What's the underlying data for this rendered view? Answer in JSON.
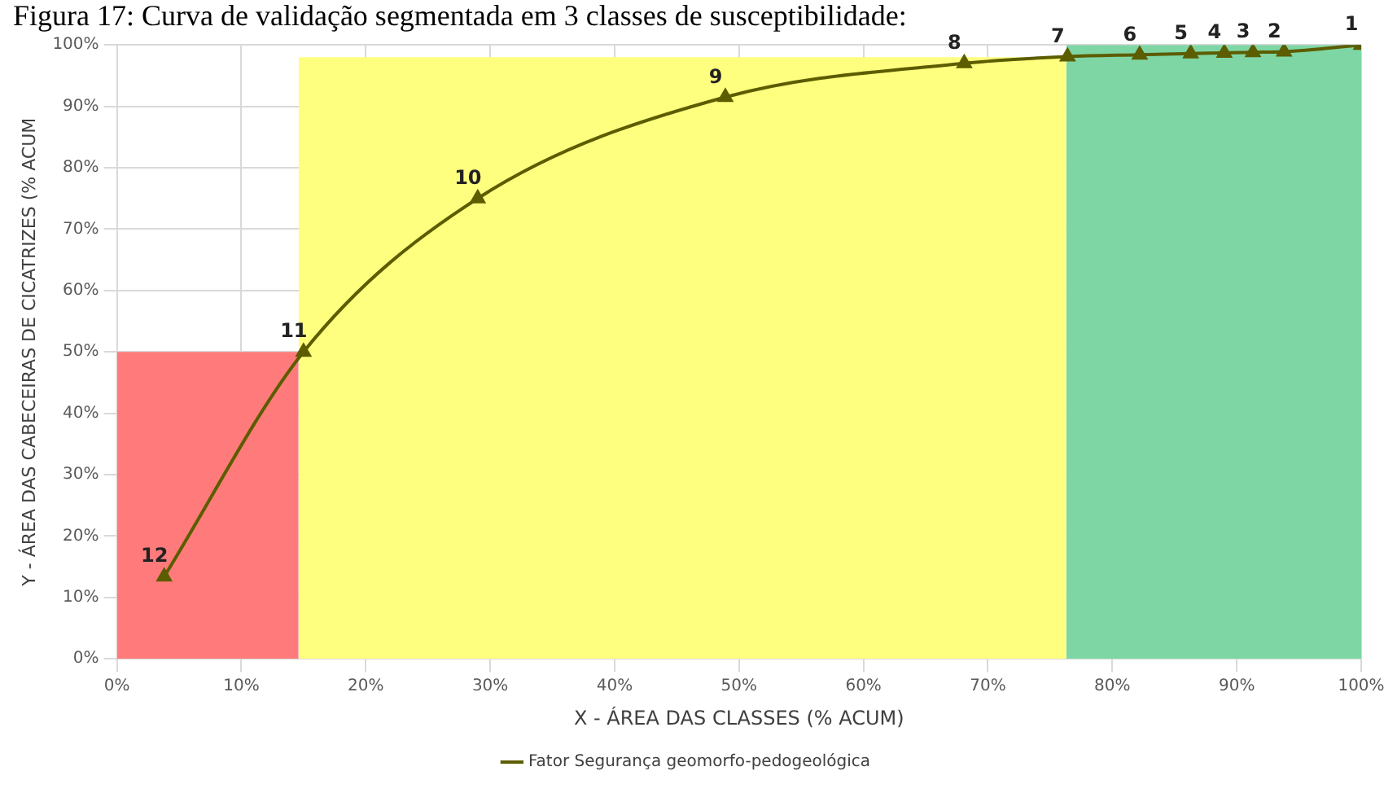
{
  "chart_data": {
    "type": "line",
    "title": "Figura 17: Curva de validação segmentada em 3 classes de susceptibilidade:",
    "xlabel": "X - ÁREA DAS CLASSES (% ACUM)",
    "ylabel": "Y - ÁREA DAS CABECEIRAS DE CICATRIZES (% ACUM",
    "xlim": [
      0,
      100
    ],
    "ylim": [
      0,
      100
    ],
    "xticks": [
      {
        "value": 0,
        "label": "0%"
      },
      {
        "value": 10,
        "label": "10%"
      },
      {
        "value": 20,
        "label": "20%"
      },
      {
        "value": 30,
        "label": "30%"
      },
      {
        "value": 40,
        "label": "40%"
      },
      {
        "value": 50,
        "label": "50%"
      },
      {
        "value": 60,
        "label": "60%"
      },
      {
        "value": 70,
        "label": "70%"
      },
      {
        "value": 80,
        "label": "80%"
      },
      {
        "value": 90,
        "label": "90%"
      },
      {
        "value": 100,
        "label": "100%"
      }
    ],
    "yticks": [
      {
        "value": 0,
        "label": "0%"
      },
      {
        "value": 10,
        "label": "10%"
      },
      {
        "value": 20,
        "label": "20%"
      },
      {
        "value": 30,
        "label": "30%"
      },
      {
        "value": 40,
        "label": "40%"
      },
      {
        "value": 50,
        "label": "50%"
      },
      {
        "value": 60,
        "label": "60%"
      },
      {
        "value": 70,
        "label": "70%"
      },
      {
        "value": 80,
        "label": "80%"
      },
      {
        "value": 90,
        "label": "90%"
      },
      {
        "value": 100,
        "label": "100%"
      }
    ],
    "grid": true,
    "legend": "bottom",
    "line_style": "solid",
    "series": [
      {
        "type": "area",
        "color": "#ff7b7b",
        "x": [
          0,
          14.6
        ],
        "values": [
          50,
          50
        ]
      },
      {
        "type": "area",
        "color": "#ffff7f",
        "x": [
          14.6,
          76.3
        ],
        "values": [
          98,
          98
        ]
      },
      {
        "type": "area",
        "color": "#7fd6a5",
        "x": [
          76.3,
          100
        ],
        "values": [
          100,
          100
        ]
      },
      {
        "name": "Fator Segurança geomorfo-pedogeológica",
        "color": "#5c5c00",
        "marker": "triangle",
        "x": [
          3.8,
          15,
          29,
          48.9,
          68.1,
          76.4,
          82.2,
          86.3,
          89,
          91.3,
          93.8,
          100
        ],
        "values": [
          13.4,
          50,
          75,
          91.5,
          97,
          98.1,
          98.4,
          98.6,
          98.7,
          98.8,
          98.9,
          100
        ]
      }
    ],
    "annotations": [
      {
        "text": "12",
        "x": 3.8,
        "y": 13.4
      },
      {
        "text": "11",
        "x": 15,
        "y": 50
      },
      {
        "text": "10",
        "x": 29,
        "y": 75
      },
      {
        "text": "9",
        "x": 48.9,
        "y": 91.5
      },
      {
        "text": "8",
        "x": 68.1,
        "y": 97
      },
      {
        "text": "7",
        "x": 76.4,
        "y": 98.1
      },
      {
        "text": "6",
        "x": 82.2,
        "y": 98.4
      },
      {
        "text": "5",
        "x": 86.3,
        "y": 98.6
      },
      {
        "text": "4",
        "x": 89,
        "y": 98.7
      },
      {
        "text": "3",
        "x": 91.3,
        "y": 98.8
      },
      {
        "text": "2",
        "x": 93.8,
        "y": 98.9
      },
      {
        "text": "1",
        "x": 100,
        "y": 100
      }
    ]
  }
}
